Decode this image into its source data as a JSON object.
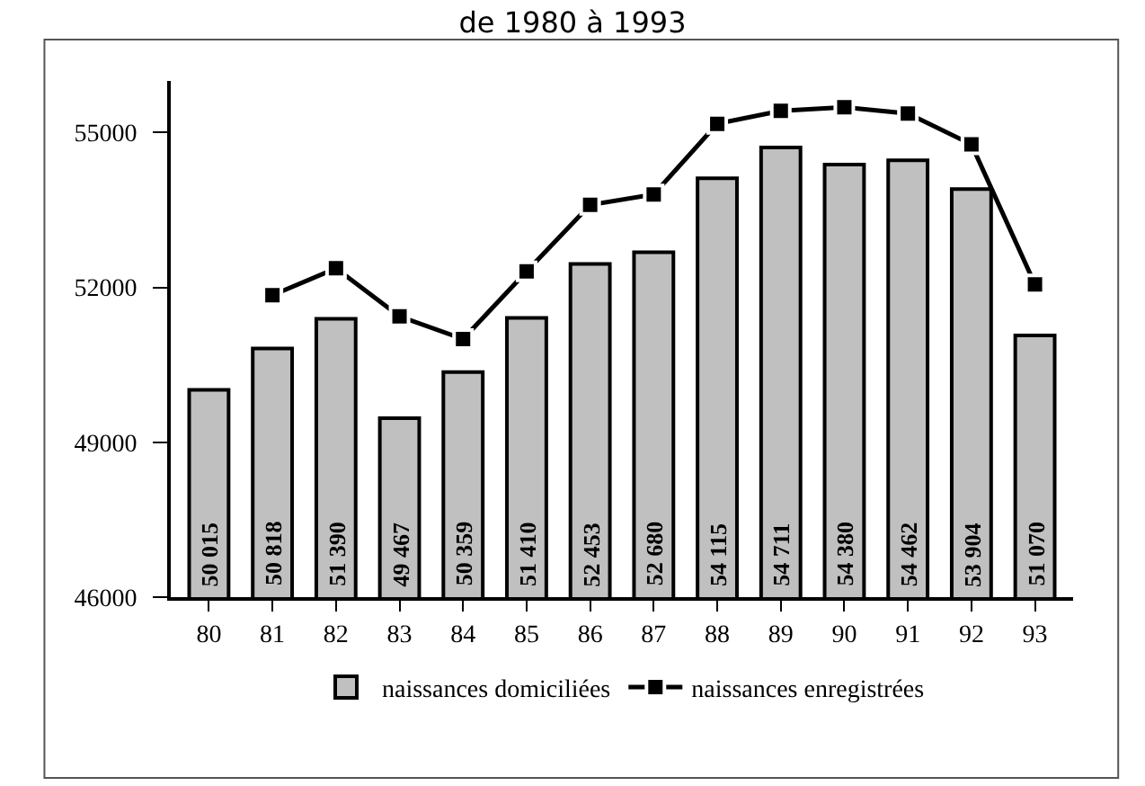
{
  "chart_data": {
    "type": "bar",
    "title": "de 1980 à 1993",
    "categories": [
      "80",
      "81",
      "82",
      "83",
      "84",
      "85",
      "86",
      "87",
      "88",
      "89",
      "90",
      "91",
      "92",
      "93"
    ],
    "series": [
      {
        "name": "naissances domiciliées",
        "color": "#c0c0c0",
        "values": [
          50015,
          50818,
          51390,
          49467,
          50359,
          51410,
          52453,
          52680,
          54115,
          54711,
          54380,
          54462,
          53904,
          51070
        ],
        "value_labels": [
          "50 015",
          "50 818",
          "51 390",
          "49 467",
          "50 359",
          "51 410",
          "52 453",
          "52 680",
          "54 115",
          "54 711",
          "54 380",
          "54 462",
          "53 904",
          "51 070"
        ]
      },
      {
        "name": "naissances enregistrées",
        "type": "line",
        "color": "#000000",
        "marker": "square",
        "values": [
          null,
          51850,
          52370,
          51440,
          51000,
          52310,
          53600,
          53800,
          55170,
          55420,
          55490,
          55370,
          54770,
          52060
        ]
      }
    ],
    "ylim": [
      46000,
      56000
    ],
    "yticks": [
      46000,
      49000,
      52000,
      55000
    ],
    "grid": false,
    "legend": "bottom"
  }
}
